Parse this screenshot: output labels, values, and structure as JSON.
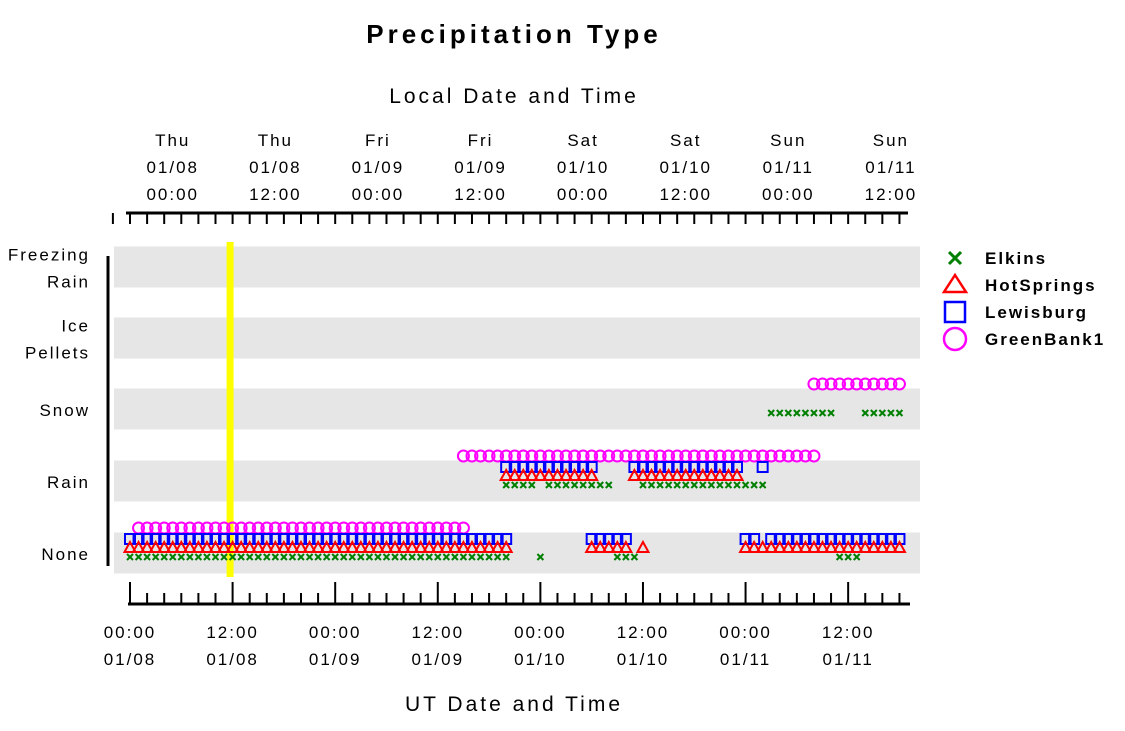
{
  "chart_data": {
    "type": "scatter",
    "title": "Precipitation Type",
    "top_axis_title": "Local Date and Time",
    "bottom_axis_title": "UT Date and Time",
    "categories": [
      "None",
      "Rain",
      "Snow",
      "Ice Pellets",
      "Freezing Rain"
    ],
    "category_labels": [
      [
        "None"
      ],
      [
        "Rain"
      ],
      [
        "Snow"
      ],
      [
        "Ice",
        "Pellets"
      ],
      [
        "Freezing",
        "Rain"
      ]
    ],
    "x_range": [
      "2015-01-08 00:00",
      "2015-01-11 19:00"
    ],
    "x_unit": "UT",
    "local_offset_hours": -5,
    "highlight_time": "2015-01-08 12:00",
    "highlight_color": "#ffff00",
    "band_color": "#e6e6e6",
    "bottom_ticks": [
      {
        "t": "2015-01-08 00:00",
        "time": "00:00",
        "date": "01/08"
      },
      {
        "t": "2015-01-08 12:00",
        "time": "12:00",
        "date": "01/08"
      },
      {
        "t": "2015-01-09 00:00",
        "time": "00:00",
        "date": "01/09"
      },
      {
        "t": "2015-01-09 12:00",
        "time": "12:00",
        "date": "01/09"
      },
      {
        "t": "2015-01-10 00:00",
        "time": "00:00",
        "date": "01/10"
      },
      {
        "t": "2015-01-10 12:00",
        "time": "12:00",
        "date": "01/10"
      },
      {
        "t": "2015-01-11 00:00",
        "time": "00:00",
        "date": "01/11"
      },
      {
        "t": "2015-01-11 12:00",
        "time": "12:00",
        "date": "01/11"
      }
    ],
    "top_ticks": [
      {
        "t": "2015-01-08 05:00",
        "day": "Thu",
        "date": "01/08",
        "time": "00:00"
      },
      {
        "t": "2015-01-08 17:00",
        "day": "Thu",
        "date": "01/08",
        "time": "12:00"
      },
      {
        "t": "2015-01-09 05:00",
        "day": "Fri",
        "date": "01/09",
        "time": "00:00"
      },
      {
        "t": "2015-01-09 17:00",
        "day": "Fri",
        "date": "01/09",
        "time": "12:00"
      },
      {
        "t": "2015-01-10 05:00",
        "day": "Sat",
        "date": "01/10",
        "time": "00:00"
      },
      {
        "t": "2015-01-10 17:00",
        "day": "Sat",
        "date": "01/10",
        "time": "12:00"
      },
      {
        "t": "2015-01-11 05:00",
        "day": "Sun",
        "date": "01/11",
        "time": "00:00"
      },
      {
        "t": "2015-01-11 17:00",
        "day": "Sun",
        "date": "01/11",
        "time": "12:00"
      }
    ],
    "series": [
      {
        "name": "Elkins",
        "marker": "x",
        "color": "#008000",
        "intervals": [
          {
            "category": "None",
            "from": "2015-01-08 00:00",
            "to": "2015-01-09 20:00"
          },
          {
            "category": "None",
            "from": "2015-01-10 00:00",
            "to": "2015-01-10 00:00"
          },
          {
            "category": "None",
            "from": "2015-01-10 09:00",
            "to": "2015-01-10 11:00"
          },
          {
            "category": "None",
            "from": "2015-01-11 11:00",
            "to": "2015-01-11 13:00"
          },
          {
            "category": "Rain",
            "from": "2015-01-09 20:00",
            "to": "2015-01-09 23:00"
          },
          {
            "category": "Rain",
            "from": "2015-01-10 01:00",
            "to": "2015-01-10 08:00"
          },
          {
            "category": "Rain",
            "from": "2015-01-10 12:00",
            "to": "2015-01-11 02:00"
          },
          {
            "category": "Snow",
            "from": "2015-01-11 03:00",
            "to": "2015-01-11 10:00"
          },
          {
            "category": "Snow",
            "from": "2015-01-11 14:00",
            "to": "2015-01-11 18:00"
          }
        ]
      },
      {
        "name": "HotSprings",
        "marker": "triangle",
        "color": "#ff0000",
        "intervals": [
          {
            "category": "None",
            "from": "2015-01-08 00:00",
            "to": "2015-01-09 20:00"
          },
          {
            "category": "None",
            "from": "2015-01-10 06:00",
            "to": "2015-01-10 10:00"
          },
          {
            "category": "None",
            "from": "2015-01-10 12:00",
            "to": "2015-01-10 12:00"
          },
          {
            "category": "None",
            "from": "2015-01-11 00:00",
            "to": "2015-01-11 18:00"
          },
          {
            "category": "Rain",
            "from": "2015-01-09 20:00",
            "to": "2015-01-10 06:00"
          },
          {
            "category": "Rain",
            "from": "2015-01-10 11:00",
            "to": "2015-01-10 23:00"
          }
        ]
      },
      {
        "name": "Lewisburg",
        "marker": "square",
        "color": "#0000ff",
        "intervals": [
          {
            "category": "None",
            "from": "2015-01-08 00:00",
            "to": "2015-01-09 20:00"
          },
          {
            "category": "None",
            "from": "2015-01-10 06:00",
            "to": "2015-01-10 10:00"
          },
          {
            "category": "None",
            "from": "2015-01-11 00:00",
            "to": "2015-01-11 01:00"
          },
          {
            "category": "None",
            "from": "2015-01-11 03:00",
            "to": "2015-01-11 18:00"
          },
          {
            "category": "Rain",
            "from": "2015-01-09 20:00",
            "to": "2015-01-10 06:00"
          },
          {
            "category": "Rain",
            "from": "2015-01-10 11:00",
            "to": "2015-01-10 23:00"
          },
          {
            "category": "Rain",
            "from": "2015-01-11 02:00",
            "to": "2015-01-11 02:00"
          }
        ]
      },
      {
        "name": "GreenBank1",
        "marker": "circle",
        "color": "#ff00ff",
        "intervals": [
          {
            "category": "None",
            "from": "2015-01-08 01:00",
            "to": "2015-01-09 15:00"
          },
          {
            "category": "Rain",
            "from": "2015-01-09 15:00",
            "to": "2015-01-11 08:00"
          },
          {
            "category": "Snow",
            "from": "2015-01-11 08:00",
            "to": "2015-01-11 18:00"
          }
        ]
      }
    ]
  }
}
